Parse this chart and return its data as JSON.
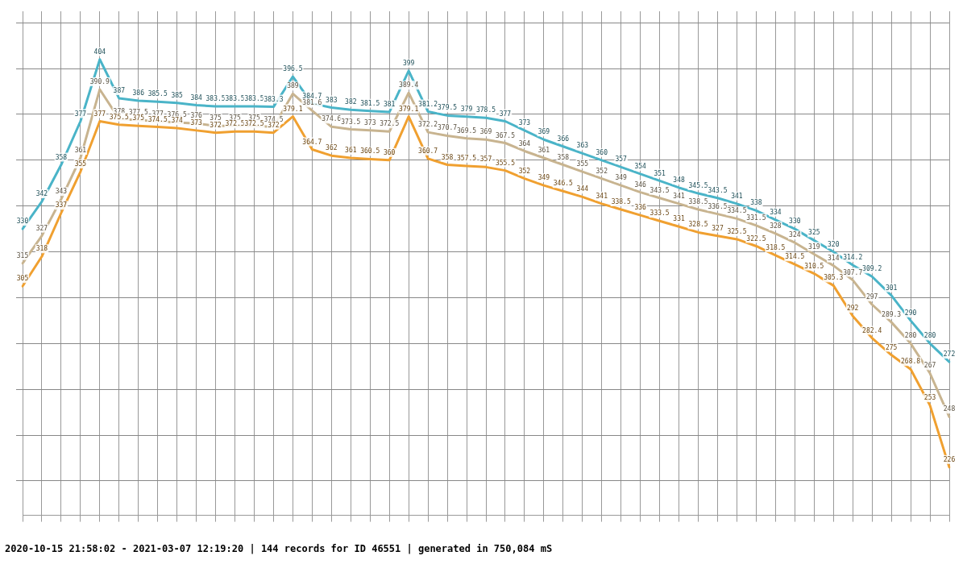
{
  "chart_data": {
    "type": "line",
    "categories": [
      null,
      null,
      null,
      null,
      null,
      null,
      null,
      null,
      null,
      null,
      null,
      null,
      null,
      null,
      null,
      null,
      null,
      null,
      null,
      null,
      null,
      null,
      null,
      null,
      null,
      null,
      null,
      null,
      null,
      null,
      null,
      null,
      null,
      null,
      null,
      null,
      null,
      null,
      null,
      null,
      null,
      null,
      null,
      null,
      null,
      null,
      null,
      null,
      null
    ],
    "series": [
      {
        "color": "#4ab4c8",
        "values": [
          330,
          342,
          358,
          377,
          404.0,
          387,
          386,
          385.5,
          385,
          384,
          383.5,
          383.5,
          383.5,
          383.3,
          396.5,
          384.7,
          383,
          382,
          381.5,
          381,
          399.0,
          381.2,
          379.5,
          379,
          378.5,
          377,
          373,
          369,
          366,
          363,
          360,
          357,
          354,
          351,
          348,
          345.5,
          343.5,
          341,
          338,
          334,
          330,
          325,
          320,
          314.2,
          309.2,
          301,
          290,
          280,
          272
        ]
      },
      {
        "color": "#c8b490",
        "values": [
          315,
          327,
          343,
          361,
          390.9,
          378,
          377.5,
          377,
          376.5,
          376,
          375,
          375,
          375,
          374.5,
          389.0,
          381.6,
          374.6,
          373.5,
          373,
          372.5,
          389.4,
          372.2,
          370.7,
          369.5,
          369,
          367.5,
          364,
          361,
          358,
          355,
          352,
          349,
          346,
          343.5,
          341,
          338.5,
          336.5,
          334.5,
          331.5,
          328,
          324,
          319,
          314,
          307.7,
          297,
          289.3,
          280,
          267,
          248
        ]
      },
      {
        "color": "#f0a030",
        "values": [
          305,
          318,
          337,
          355,
          377.0,
          375.5,
          375,
          374.5,
          374,
          373,
          372,
          372.5,
          372.5,
          372,
          379.1,
          364.7,
          362,
          361,
          360.5,
          360,
          379.1,
          360.7,
          358,
          357.5,
          357,
          355.5,
          352,
          349,
          346.5,
          344,
          341,
          338.5,
          336,
          333.5,
          331,
          328.5,
          327,
          325.5,
          322.5,
          318.5,
          314.5,
          310.5,
          305.3,
          292.0,
          282.4,
          275.0,
          268.8,
          253,
          226
        ]
      }
    ],
    "ylim": [
      205,
      425
    ],
    "yticks": [
      {
        "value": 220,
        "label": null
      },
      {
        "value": 240,
        "label": null
      },
      {
        "value": 260,
        "label": null
      },
      {
        "value": 280,
        "label": null
      },
      {
        "value": 300,
        "label": null
      },
      {
        "value": 320,
        "label": null
      },
      {
        "value": 340,
        "label": null
      },
      {
        "value": 360,
        "label": null
      },
      {
        "value": 380,
        "label": null
      },
      {
        "value": 400,
        "label": null
      },
      {
        "value": 420,
        "label": null
      }
    ],
    "grid": true,
    "legend": false,
    "marker": "none",
    "line_style": "solid",
    "data_labels": true,
    "annotations": [
      "2020-10-15 21:58:02 - 2021-03-07 12:19:20 | 144 records for ID 46551 | generated in 750,084 mS"
    ]
  }
}
